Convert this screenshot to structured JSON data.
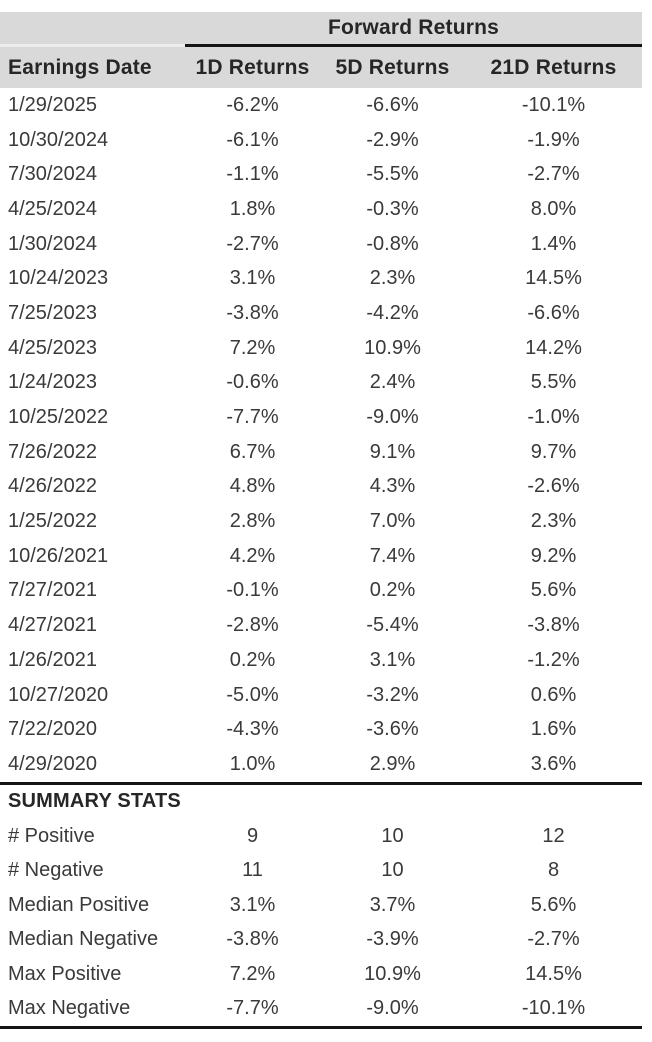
{
  "colors": {
    "background": "#ffffff",
    "header_band": "#d9d9d9",
    "text": "#3a3a3a",
    "heading_text": "#262626",
    "rule": "#141414"
  },
  "chart_data": {
    "type": "table",
    "title": "Forward Returns",
    "columns": [
      "Earnings Date",
      "1D Returns",
      "5D Returns",
      "21D Returns"
    ],
    "rows": [
      [
        "1/29/2025",
        "-6.2%",
        "-6.6%",
        "-10.1%"
      ],
      [
        "10/30/2024",
        "-6.1%",
        "-2.9%",
        "-1.9%"
      ],
      [
        "7/30/2024",
        "-1.1%",
        "-5.5%",
        "-2.7%"
      ],
      [
        "4/25/2024",
        "1.8%",
        "-0.3%",
        "8.0%"
      ],
      [
        "1/30/2024",
        "-2.7%",
        "-0.8%",
        "1.4%"
      ],
      [
        "10/24/2023",
        "3.1%",
        "2.3%",
        "14.5%"
      ],
      [
        "7/25/2023",
        "-3.8%",
        "-4.2%",
        "-6.6%"
      ],
      [
        "4/25/2023",
        "7.2%",
        "10.9%",
        "14.2%"
      ],
      [
        "1/24/2023",
        "-0.6%",
        "2.4%",
        "5.5%"
      ],
      [
        "10/25/2022",
        "-7.7%",
        "-9.0%",
        "-1.0%"
      ],
      [
        "7/26/2022",
        "6.7%",
        "9.1%",
        "9.7%"
      ],
      [
        "4/26/2022",
        "4.8%",
        "4.3%",
        "-2.6%"
      ],
      [
        "1/25/2022",
        "2.8%",
        "7.0%",
        "2.3%"
      ],
      [
        "10/26/2021",
        "4.2%",
        "7.4%",
        "9.2%"
      ],
      [
        "7/27/2021",
        "-0.1%",
        "0.2%",
        "5.6%"
      ],
      [
        "4/27/2021",
        "-2.8%",
        "-5.4%",
        "-3.8%"
      ],
      [
        "1/26/2021",
        "0.2%",
        "3.1%",
        "-1.2%"
      ],
      [
        "10/27/2020",
        "-5.0%",
        "-3.2%",
        "0.6%"
      ],
      [
        "7/22/2020",
        "-4.3%",
        "-3.6%",
        "1.6%"
      ],
      [
        "4/29/2020",
        "1.0%",
        "2.9%",
        "3.6%"
      ]
    ],
    "summary": {
      "title": "SUMMARY STATS",
      "rows": [
        [
          "# Positive",
          "9",
          "10",
          "12"
        ],
        [
          "# Negative",
          "11",
          "10",
          "8"
        ],
        [
          "Median Positive",
          "3.1%",
          "3.7%",
          "5.6%"
        ],
        [
          "Median Negative",
          "-3.8%",
          "-3.9%",
          "-2.7%"
        ],
        [
          "Max Positive",
          "7.2%",
          "10.9%",
          "14.5%"
        ],
        [
          "Max Negative",
          "-7.7%",
          "-9.0%",
          "-10.1%"
        ]
      ]
    },
    "layout": {
      "group_header_spans_columns": [
        "1D Returns",
        "5D Returns",
        "21D Returns"
      ],
      "grid": "off",
      "value_alignment": "center",
      "label_alignment": "left"
    }
  }
}
